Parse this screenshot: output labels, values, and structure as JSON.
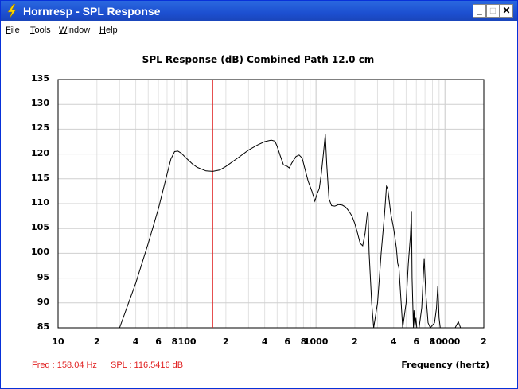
{
  "window": {
    "title": "Hornresp - SPL Response"
  },
  "menu": [
    {
      "label": "File",
      "ul": "F",
      "rest": "ile"
    },
    {
      "label": "Tools",
      "ul": "T",
      "rest": "ools"
    },
    {
      "label": "Window",
      "ul": "W",
      "rest": "indow"
    },
    {
      "label": "Help",
      "ul": "H",
      "rest": "elp"
    }
  ],
  "plot": {
    "title": "SPL Response (dB)   Combined   Path 12.0 cm"
  },
  "status": {
    "freq": "Freq : 158.04 Hz",
    "spl": "SPL : 116.5416 dB"
  },
  "xaxis": {
    "label": "Frequency (hertz)"
  },
  "chart_data": {
    "type": "line",
    "title": "SPL Response (dB)   Combined   Path 12.0 cm",
    "xlabel": "Frequency (hertz)",
    "ylabel": "",
    "xscale": "log",
    "xlim": [
      10,
      20000
    ],
    "ylim": [
      85,
      135
    ],
    "y_ticks": [
      "135",
      "130",
      "125",
      "120",
      "115",
      "110",
      "105",
      "100",
      "95",
      "90",
      "85"
    ],
    "x_ticks": [
      {
        "v": 10,
        "label": "10"
      },
      {
        "v": 20,
        "label": "2"
      },
      {
        "v": 40,
        "label": "4"
      },
      {
        "v": 60,
        "label": "6"
      },
      {
        "v": 80,
        "label": "8"
      },
      {
        "v": 100,
        "label": "100"
      },
      {
        "v": 200,
        "label": "2"
      },
      {
        "v": 400,
        "label": "4"
      },
      {
        "v": 600,
        "label": "6"
      },
      {
        "v": 800,
        "label": "8"
      },
      {
        "v": 1000,
        "label": "1000"
      },
      {
        "v": 2000,
        "label": "2"
      },
      {
        "v": 4000,
        "label": "4"
      },
      {
        "v": 6000,
        "label": "6"
      },
      {
        "v": 8000,
        "label": "8"
      },
      {
        "v": 10000,
        "label": "10000"
      },
      {
        "v": 20000,
        "label": "2"
      }
    ],
    "grid": true,
    "marker_freq": 158.04,
    "marker_color": "#e02020",
    "series": [
      {
        "color": "#000000",
        "points": [
          [
            30,
            85
          ],
          [
            40,
            94
          ],
          [
            50,
            102
          ],
          [
            60,
            109
          ],
          [
            70,
            116
          ],
          [
            75,
            119
          ],
          [
            80,
            120.5
          ],
          [
            85,
            120.6
          ],
          [
            90,
            120.2
          ],
          [
            100,
            119
          ],
          [
            110,
            118
          ],
          [
            120,
            117.3
          ],
          [
            140,
            116.6
          ],
          [
            158,
            116.5
          ],
          [
            180,
            116.8
          ],
          [
            200,
            117.5
          ],
          [
            250,
            119.3
          ],
          [
            300,
            120.8
          ],
          [
            350,
            121.8
          ],
          [
            400,
            122.5
          ],
          [
            450,
            122.8
          ],
          [
            480,
            122.6
          ],
          [
            500,
            121.5
          ],
          [
            530,
            119.5
          ],
          [
            560,
            117.8
          ],
          [
            600,
            117.5
          ],
          [
            620,
            117.2
          ],
          [
            650,
            118.2
          ],
          [
            700,
            119.5
          ],
          [
            740,
            119.8
          ],
          [
            780,
            119.2
          ],
          [
            820,
            117
          ],
          [
            870,
            114.5
          ],
          [
            930,
            112.5
          ],
          [
            980,
            110.5
          ],
          [
            1020,
            112
          ],
          [
            1060,
            113
          ],
          [
            1100,
            116
          ],
          [
            1150,
            121
          ],
          [
            1180,
            124
          ],
          [
            1210,
            118
          ],
          [
            1260,
            111
          ],
          [
            1320,
            109.6
          ],
          [
            1400,
            109.5
          ],
          [
            1500,
            109.8
          ],
          [
            1600,
            109.7
          ],
          [
            1700,
            109.3
          ],
          [
            1800,
            108.5
          ],
          [
            1900,
            107.5
          ],
          [
            2000,
            106
          ],
          [
            2100,
            104
          ],
          [
            2200,
            102
          ],
          [
            2300,
            101.5
          ],
          [
            2400,
            104
          ],
          [
            2500,
            108
          ],
          [
            2530,
            108.5
          ],
          [
            2580,
            100
          ],
          [
            2700,
            90
          ],
          [
            2800,
            85
          ],
          [
            3000,
            90
          ],
          [
            3200,
            100
          ],
          [
            3400,
            108
          ],
          [
            3520,
            113.5
          ],
          [
            3600,
            113
          ],
          [
            3800,
            108
          ],
          [
            4000,
            105
          ],
          [
            4200,
            101
          ],
          [
            4300,
            98
          ],
          [
            4400,
            97
          ],
          [
            4500,
            93
          ],
          [
            4700,
            85
          ],
          [
            5000,
            90
          ],
          [
            5200,
            98
          ],
          [
            5400,
            103.5
          ],
          [
            5500,
            108.5
          ],
          [
            5560,
            95
          ],
          [
            5700,
            85
          ],
          [
            5750,
            88.5
          ],
          [
            5850,
            85
          ],
          [
            5950,
            87
          ],
          [
            6050,
            85
          ],
          [
            6300,
            85
          ],
          [
            6600,
            89
          ],
          [
            6900,
            99
          ],
          [
            7100,
            92
          ],
          [
            7400,
            86
          ],
          [
            7700,
            85
          ],
          [
            8300,
            86
          ],
          [
            8600,
            89
          ],
          [
            8800,
            93.5
          ],
          [
            9000,
            87
          ],
          [
            9200,
            85
          ],
          [
            12000,
            85
          ],
          [
            12700,
            86.2
          ],
          [
            13200,
            85
          ],
          [
            20000,
            85
          ]
        ]
      }
    ]
  }
}
